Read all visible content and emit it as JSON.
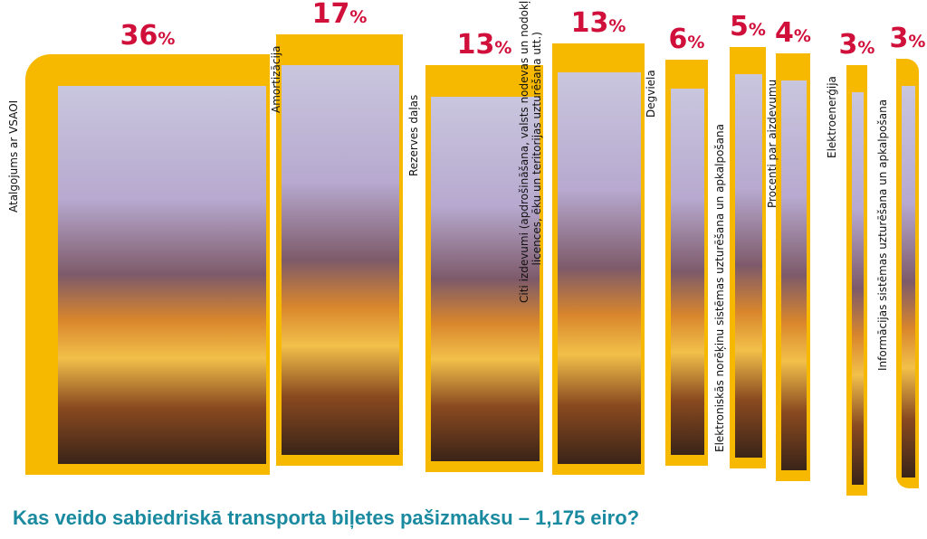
{
  "chart_data": {
    "type": "bar",
    "title": "Kas veido sabiedriskā transporta biļetes pašizmaksu – 1,175 eiro?",
    "categories": [
      "Atalgojums ar VSAOI",
      "Amortizācija",
      "Rezerves daļas",
      "Citi izdevumi (apdrošināšana, valsts nodevas un nodokļi, licences, ēku un teritorijas uzturēšana utt.)",
      "Degviela",
      "Elektroniskās norēķinu sistēmas uzturēšana un apkalpošana",
      "Procenti par aizdevumu",
      "Elektroenerģija",
      "Informācijas sistēmas uzturēšana un apkalpošana"
    ],
    "values": [
      36,
      17,
      13,
      13,
      6,
      5,
      4,
      3,
      3
    ],
    "unit": "%",
    "colors": {
      "frame": "#f7b800",
      "value": "#d0103a",
      "title": "#1a8aa0"
    }
  }
}
